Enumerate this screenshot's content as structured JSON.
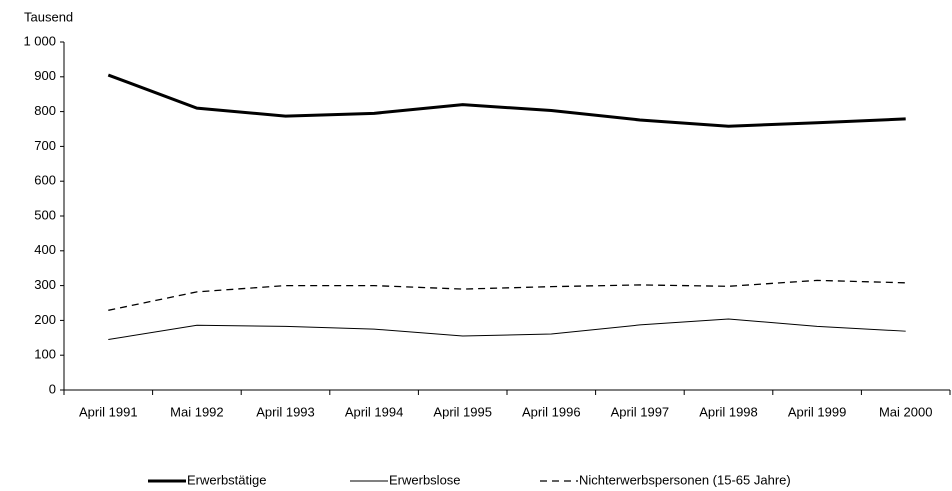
{
  "chart_data": {
    "type": "line",
    "ylabel": "Tausend",
    "categories": [
      "April 1991",
      "Mai 1992",
      "April 1993",
      "April 1994",
      "April 1995",
      "April 1996",
      "April 1997",
      "April 1998",
      "April 1999",
      "Mai 2000"
    ],
    "series": [
      {
        "name": "Erwerbstätige",
        "color": "#000000",
        "width": 3,
        "dash": "none",
        "values": [
          905,
          810,
          787,
          795,
          820,
          803,
          776,
          758,
          768,
          779
        ]
      },
      {
        "name": "Erwerbslose",
        "color": "#000000",
        "width": 1,
        "dash": "none",
        "values": [
          145,
          186,
          183,
          175,
          155,
          161,
          187,
          204,
          183,
          169
        ]
      },
      {
        "name": "Nichterwerbspersonen (15-65 Jahre)",
        "color": "#000000",
        "width": 1.3,
        "dash": "7 5",
        "values": [
          229,
          282,
          300,
          300,
          290,
          297,
          302,
          298,
          315,
          308
        ]
      }
    ],
    "ylim": [
      0,
      1000
    ],
    "yticks": [
      0,
      100,
      200,
      300,
      400,
      500,
      600,
      700,
      800,
      900,
      {
        "value": 1000,
        "label": "1 000"
      }
    ]
  }
}
